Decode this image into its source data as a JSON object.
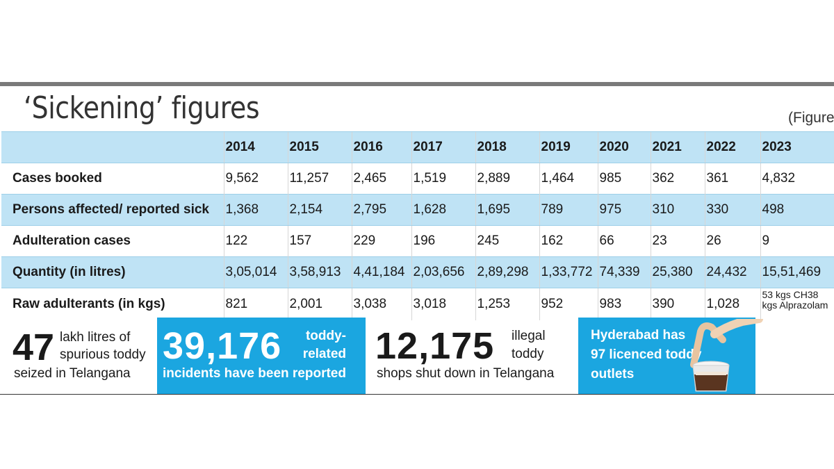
{
  "title": "‘Sickening’ figures",
  "note": "(Figure",
  "columns": [
    "2014",
    "2015",
    "2016",
    "2017",
    "2018",
    "2019",
    "2020",
    "2021",
    "2022",
    "2023"
  ],
  "rows": [
    {
      "label": "Cases booked",
      "values": [
        "9,562",
        "11,257",
        "2,465",
        "1,519",
        "2,889",
        "1,464",
        "985",
        "362",
        "361",
        "4,832"
      ]
    },
    {
      "label": "Persons affected/ reported sick",
      "values": [
        "1,368",
        "2,154",
        "2,795",
        "1,628",
        "1,695",
        "789",
        "975",
        "310",
        "330",
        "498"
      ]
    },
    {
      "label": "Adulteration cases",
      "values": [
        "122",
        "157",
        "229",
        "196",
        "245",
        "162",
        "66",
        "23",
        "26",
        "9"
      ]
    },
    {
      "label": "Quantity (in litres)",
      "values": [
        "3,05,014",
        "3,58,913",
        "4,41,184",
        "2,03,656",
        "2,89,298",
        "1,33,772",
        "74,339",
        "25,380",
        "24,432",
        "15,51,469"
      ]
    },
    {
      "label": "Raw adulterants (in kgs)",
      "values": [
        "821",
        "2,001",
        "3,038",
        "3,018",
        "1,253",
        "952",
        "983",
        "390",
        "1,028",
        "53 kgs CH38 kgs Alprazolam"
      ]
    }
  ],
  "stats": {
    "s1": {
      "number": "47",
      "text1": "lakh litres of spurious toddy",
      "text2": "seized in Telangana"
    },
    "s2": {
      "number": "39,176",
      "text1": "toddy-related",
      "text2": "incidents have been reported"
    },
    "s3": {
      "number": "12,175",
      "text1": "illegal toddy",
      "text2": "shops shut down in Telangana"
    },
    "s4": {
      "text1": "Hyderabad has 97 licenced toddy outlets"
    }
  },
  "colors": {
    "band": "#bfe3f5",
    "accent": "#1ba6e0",
    "rule": "#7a7a7a"
  }
}
